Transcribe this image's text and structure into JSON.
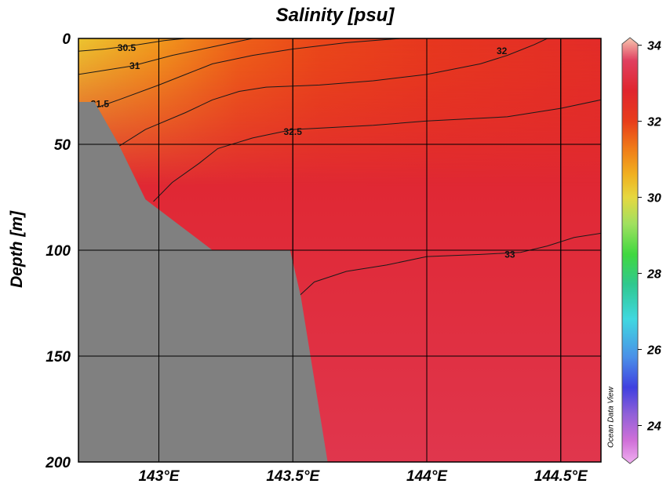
{
  "chart_data": {
    "type": "heatmap",
    "title": "Salinity [psu]",
    "xlabel": "",
    "ylabel": "Depth [m]",
    "xlim": [
      142.7,
      144.65
    ],
    "ylim": [
      200,
      0
    ],
    "x_ticks": [
      {
        "value": 143.0,
        "label": "143°E"
      },
      {
        "value": 143.5,
        "label": "143.5°E"
      },
      {
        "value": 144.0,
        "label": "144°E"
      },
      {
        "value": 144.5,
        "label": "144.5°E"
      }
    ],
    "y_ticks": [
      {
        "value": 0,
        "label": "0"
      },
      {
        "value": 50,
        "label": "50"
      },
      {
        "value": 100,
        "label": "100"
      },
      {
        "value": 150,
        "label": "150"
      },
      {
        "value": 200,
        "label": "200"
      }
    ],
    "grid": true,
    "colorbar": {
      "range": [
        23,
        34.2
      ],
      "ticks": [
        {
          "value": 34,
          "label": "34"
        },
        {
          "value": 32,
          "label": "32"
        },
        {
          "value": 30,
          "label": "30"
        },
        {
          "value": 28,
          "label": "28"
        },
        {
          "value": 26,
          "label": "26"
        },
        {
          "value": 24,
          "label": "24"
        }
      ],
      "stops": [
        {
          "value": 34.2,
          "color": "#f7c8b0"
        },
        {
          "value": 33.6,
          "color": "#e04060"
        },
        {
          "value": 32.8,
          "color": "#e0252e"
        },
        {
          "value": 32.0,
          "color": "#e83d1a"
        },
        {
          "value": 31.3,
          "color": "#f07a18"
        },
        {
          "value": 30.6,
          "color": "#f0b020"
        },
        {
          "value": 30.0,
          "color": "#e6d840"
        },
        {
          "value": 29.3,
          "color": "#a0e060"
        },
        {
          "value": 28.5,
          "color": "#40d840"
        },
        {
          "value": 27.7,
          "color": "#30c890"
        },
        {
          "value": 26.8,
          "color": "#40d8e0"
        },
        {
          "value": 25.8,
          "color": "#4a90e8"
        },
        {
          "value": 25.0,
          "color": "#4040e0"
        },
        {
          "value": 24.3,
          "color": "#9060d8"
        },
        {
          "value": 23.6,
          "color": "#d070d8"
        },
        {
          "value": 23.0,
          "color": "#f0b0f0"
        }
      ]
    },
    "surface_salinity": [
      {
        "x": 142.7,
        "value": 30.3
      },
      {
        "x": 143.0,
        "value": 30.9
      },
      {
        "x": 143.3,
        "value": 31.6
      },
      {
        "x": 143.6,
        "value": 31.9
      },
      {
        "x": 144.0,
        "value": 32.2
      },
      {
        "x": 144.65,
        "value": 32.6
      }
    ],
    "deep_salinity": 33.3,
    "contours": [
      {
        "level": 30.5,
        "label": "30.5",
        "points": [
          [
            142.7,
            6
          ],
          [
            142.8,
            5
          ],
          [
            142.92,
            3
          ],
          [
            143.02,
            1
          ],
          [
            143.1,
            0
          ]
        ]
      },
      {
        "level": 31,
        "label": "31",
        "points": [
          [
            142.7,
            17
          ],
          [
            142.8,
            15
          ],
          [
            142.9,
            13
          ],
          [
            143.05,
            8
          ],
          [
            143.2,
            4
          ],
          [
            143.35,
            0
          ]
        ]
      },
      {
        "level": 31.5,
        "label": "31.5",
        "points": [
          [
            142.76,
            33
          ],
          [
            142.85,
            29
          ],
          [
            143.0,
            22
          ],
          [
            143.1,
            17
          ],
          [
            143.2,
            12
          ],
          [
            143.35,
            8
          ],
          [
            143.5,
            5
          ],
          [
            143.7,
            2
          ],
          [
            143.9,
            0
          ]
        ]
      },
      {
        "level": 32,
        "label": "32",
        "points": [
          [
            142.85,
            51
          ],
          [
            142.95,
            43
          ],
          [
            143.1,
            35
          ],
          [
            143.2,
            29
          ],
          [
            143.3,
            25
          ],
          [
            143.4,
            23
          ],
          [
            143.6,
            22
          ],
          [
            143.8,
            20
          ],
          [
            144.0,
            17
          ],
          [
            144.2,
            12
          ],
          [
            144.3,
            8
          ],
          [
            144.4,
            3
          ],
          [
            144.45,
            0
          ]
        ]
      },
      {
        "level": 32.5,
        "label": "32.5",
        "points": [
          [
            142.98,
            77
          ],
          [
            143.05,
            68
          ],
          [
            143.15,
            59
          ],
          [
            143.22,
            52
          ],
          [
            143.35,
            47
          ],
          [
            143.5,
            43
          ],
          [
            143.8,
            41
          ],
          [
            144.0,
            39
          ],
          [
            144.3,
            37
          ],
          [
            144.5,
            33
          ],
          [
            144.65,
            29
          ]
        ]
      },
      {
        "level": 33,
        "label": "33",
        "points": [
          [
            143.52,
            122
          ],
          [
            143.58,
            115
          ],
          [
            143.7,
            110
          ],
          [
            143.85,
            107
          ],
          [
            144.0,
            103
          ],
          [
            144.2,
            102
          ],
          [
            144.35,
            101
          ],
          [
            144.45,
            98
          ],
          [
            144.55,
            94
          ],
          [
            144.65,
            92
          ]
        ]
      }
    ],
    "contour_labels": [
      {
        "text": "30.5",
        "x": 142.88,
        "y": 4.5
      },
      {
        "text": "31",
        "x": 142.91,
        "y": 13
      },
      {
        "text": "31.5",
        "x": 142.78,
        "y": 31
      },
      {
        "text": "32",
        "x": 144.28,
        "y": 6
      },
      {
        "text": "32.5",
        "x": 143.5,
        "y": 44
      },
      {
        "text": "33",
        "x": 144.31,
        "y": 102
      }
    ],
    "bottom_topography": [
      [
        142.7,
        30
      ],
      [
        142.76,
        30
      ],
      [
        142.85,
        50
      ],
      [
        142.95,
        76
      ],
      [
        143.2,
        100
      ],
      [
        143.49,
        100
      ],
      [
        143.53,
        122
      ],
      [
        143.63,
        200
      ],
      [
        142.7,
        200
      ]
    ],
    "watermark": "Ocean Data View"
  }
}
